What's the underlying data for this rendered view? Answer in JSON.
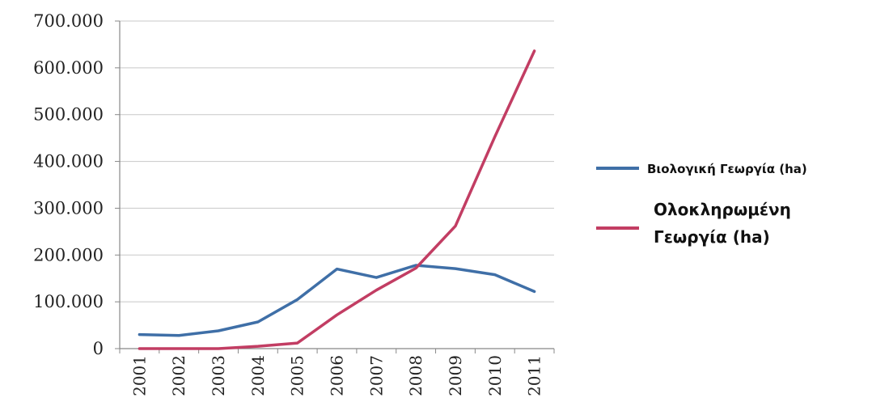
{
  "chart_data": {
    "type": "line",
    "title": "",
    "xlabel": "",
    "ylabel": "",
    "x": [
      "2001",
      "2002",
      "2003",
      "2004",
      "2005",
      "2006",
      "2007",
      "2008",
      "2009",
      "2010",
      "2011"
    ],
    "yticks": [
      "0",
      "100.000",
      "200.000",
      "300.000",
      "400.000",
      "500.000",
      "600.000",
      "700.000"
    ],
    "ylim": [
      0,
      700000
    ],
    "grid": true,
    "legend_position": "right",
    "series": [
      {
        "name": "Βιολογική Γεωργία (ha)",
        "color": "#3f6fa7",
        "values": [
          30000,
          28000,
          38000,
          57000,
          105000,
          170000,
          152000,
          178000,
          171000,
          158000,
          122000
        ]
      },
      {
        "name_lines": [
          "Ολοκληρωμένη",
          "Γεωργία (ha)"
        ],
        "color": "#c23d63",
        "values": [
          0,
          0,
          0,
          5000,
          12000,
          72000,
          125000,
          172000,
          262000,
          453000,
          636000
        ]
      }
    ]
  }
}
